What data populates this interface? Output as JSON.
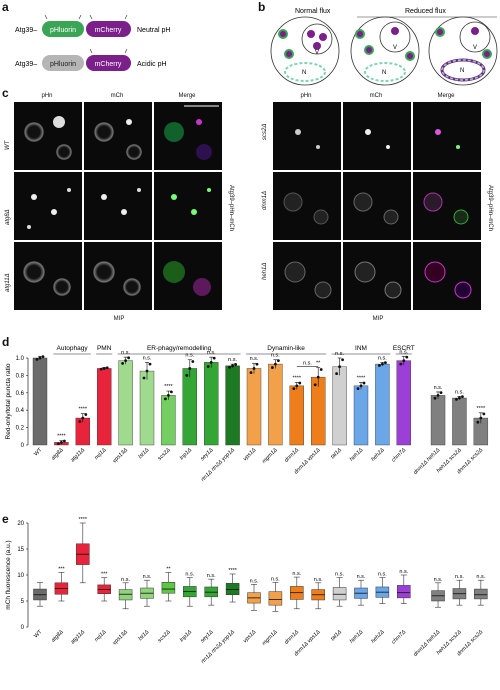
{
  "panels": {
    "a": "a",
    "b": "b",
    "c": "c",
    "d": "d",
    "e": "e"
  },
  "panel_a": {
    "row1": {
      "prefix": "Atg39–",
      "pH": "pHluorin",
      "mCh": "mCherry",
      "label": "Neutral pH"
    },
    "row2": {
      "prefix": "Atg39–",
      "pH": "pHluorin",
      "mCh": "mCherry",
      "label": "Acidic pH"
    },
    "colors": {
      "green": "#3aa655",
      "purple": "#7b1f8a",
      "grey": "#b5b5b5"
    }
  },
  "panel_b": {
    "normal": "Normal flux",
    "reduced": "Reduced flux",
    "V": "V",
    "N": "N"
  },
  "panel_c": {
    "left_cols": [
      "pHn",
      "mCh",
      "Merge"
    ],
    "left_rows": [
      "WT",
      "atg8Δ",
      "atg11Δ"
    ],
    "right_cols": [
      "pHn",
      "mCh",
      "Merge"
    ],
    "right_rows": [
      "scs2Δ",
      "dnm1Δ",
      "heh1Δ"
    ],
    "side": "Atg39–pHn–mCh",
    "mip": "MIP"
  },
  "chart_data": [
    {
      "type": "bar",
      "ylabel": "Red-only/total puncta ratio",
      "ylim": [
        0,
        1
      ],
      "yticks": [
        "0",
        "0.2",
        "0.4",
        "0.6",
        "0.8",
        "1.0"
      ],
      "groups": [
        {
          "name": "Autophagy",
          "start": 1,
          "end": 2
        },
        {
          "name": "PMN",
          "start": 3,
          "end": 3
        },
        {
          "name": "ER-phagy/remodelling",
          "start": 4,
          "end": 9
        },
        {
          "name": "Dynamin-like",
          "start": 10,
          "end": 13
        },
        {
          "name": "INM",
          "start": 14,
          "end": 16
        },
        {
          "name": "ESCRT",
          "start": 17,
          "end": 17
        }
      ],
      "categories": [
        "WT",
        "atg8Δ",
        "atg11Δ",
        "nvj1Δ",
        "vps13Δ",
        "lst1Δ",
        "scs2Δ",
        "lnp1Δ",
        "sey1Δ",
        "rtn1Δ rtn2Δ yop1Δ",
        "vps1Δ",
        "mgm1Δ",
        "dnm1Δ",
        "dnm1Δ vps1Δ",
        "tal1Δ",
        "heh1Δ",
        "heh2Δ",
        "chm7Δ",
        "dnm1Δ heh1Δ",
        "heh1Δ scs2Δ",
        "dnm1Δ scs2Δ"
      ],
      "values": [
        1.0,
        0.03,
        0.31,
        0.88,
        0.97,
        0.85,
        0.57,
        0.88,
        0.95,
        0.91,
        0.88,
        0.93,
        0.68,
        0.78,
        0.9,
        0.68,
        0.93,
        0.97,
        0.57,
        0.54,
        0.31
      ],
      "errors": [
        0.02,
        0.02,
        0.05,
        0.01,
        0.04,
        0.1,
        0.05,
        0.1,
        0.06,
        0.02,
        0.06,
        0.05,
        0.04,
        0.11,
        0.1,
        0.04,
        0.02,
        0.05,
        0.04,
        0.02,
        0.06
      ],
      "significance": [
        "",
        "****",
        "****",
        "",
        "n.s.",
        "n.s.",
        "****",
        "n.s.",
        "n.s.",
        "n.s.",
        "n.s.",
        "n.s.",
        "****",
        "**",
        "n.s.",
        "****",
        "n.s.",
        "n.s.",
        "n.s.",
        "n.s.",
        "****"
      ],
      "bracket_label": "n.s.",
      "colors": [
        "#6b6b6b",
        "#e8233c",
        "#e8233c",
        "#e8233c",
        "#8fd47a",
        "#8fd47a",
        "#5cc645",
        "#34a635",
        "#34a635",
        "#1d7a22",
        "#f3a04a",
        "#f3a04a",
        "#ee7d1b",
        "#ee7d1b",
        "#d0d0d0",
        "#6aa6e8",
        "#6aa6e8",
        "#9b3fd6",
        "#808080",
        "#808080",
        "#808080"
      ]
    },
    {
      "type": "box",
      "ylabel": "mCh fluorescence (a.u.)",
      "ylim": [
        0,
        20
      ],
      "yticks": [
        "0",
        "5",
        "10",
        "15",
        "20"
      ],
      "categories": [
        "WT",
        "atg8Δ",
        "atg11Δ",
        "nvj1Δ",
        "vps13Δ",
        "lst1Δ",
        "scs2Δ",
        "lnp1Δ",
        "sey1Δ",
        "rtn1Δ rtn2Δ yop1Δ",
        "vps1Δ",
        "mgm1Δ",
        "dnm1Δ",
        "dnm1Δ vps1Δ",
        "tal1Δ",
        "heh1Δ",
        "heh2Δ",
        "chm7Δ",
        "dnm1Δ heh1Δ",
        "heh1Δ scs2Δ",
        "dnm1Δ scs2Δ"
      ],
      "boxes": [
        [
          4,
          5.2,
          6.2,
          7.3,
          8.6
        ],
        [
          5,
          6.3,
          7.4,
          8.5,
          10.5
        ],
        [
          8.5,
          12,
          14,
          16,
          20
        ],
        [
          5,
          6.4,
          7.2,
          8.1,
          9.5
        ],
        [
          3.5,
          5.2,
          6.3,
          7.2,
          8.5
        ],
        [
          4,
          5.5,
          6.5,
          7.5,
          9
        ],
        [
          5,
          6.5,
          7.3,
          8.6,
          10.5
        ],
        [
          4,
          5.8,
          6.8,
          7.8,
          9.5
        ],
        [
          4.2,
          5.8,
          6.7,
          7.7,
          9.2
        ],
        [
          4.8,
          6.2,
          7.2,
          8.4,
          10.2
        ],
        [
          3.2,
          4.6,
          5.6,
          6.6,
          8.2
        ],
        [
          3,
          4.2,
          5.3,
          6.8,
          8.6
        ],
        [
          3.5,
          5.3,
          6.6,
          7.8,
          9.6
        ],
        [
          3.5,
          5.2,
          6.2,
          7.2,
          8.5
        ],
        [
          4,
          5.2,
          6.3,
          7.6,
          9.5
        ],
        [
          4.2,
          5.5,
          6.5,
          7.5,
          9
        ],
        [
          4.5,
          5.7,
          6.7,
          7.7,
          9.5
        ],
        [
          4.5,
          5.6,
          6.6,
          8,
          10
        ],
        [
          3.8,
          5,
          6,
          7,
          8.5
        ],
        [
          4.2,
          5.4,
          6.4,
          7.4,
          9
        ],
        [
          4.2,
          5.4,
          6.2,
          7.3,
          9
        ]
      ],
      "significance": [
        "",
        "***",
        "****",
        "***",
        "n.s.",
        "n.s.",
        "**",
        "n.s.",
        "n.s.",
        "****",
        "n.s.",
        "n.s.",
        "n.s.",
        "n.s.",
        "n.s.",
        "n.s.",
        "n.s.",
        "n.s.",
        "n.s.",
        "n.s.",
        "n.s."
      ]
    }
  ]
}
